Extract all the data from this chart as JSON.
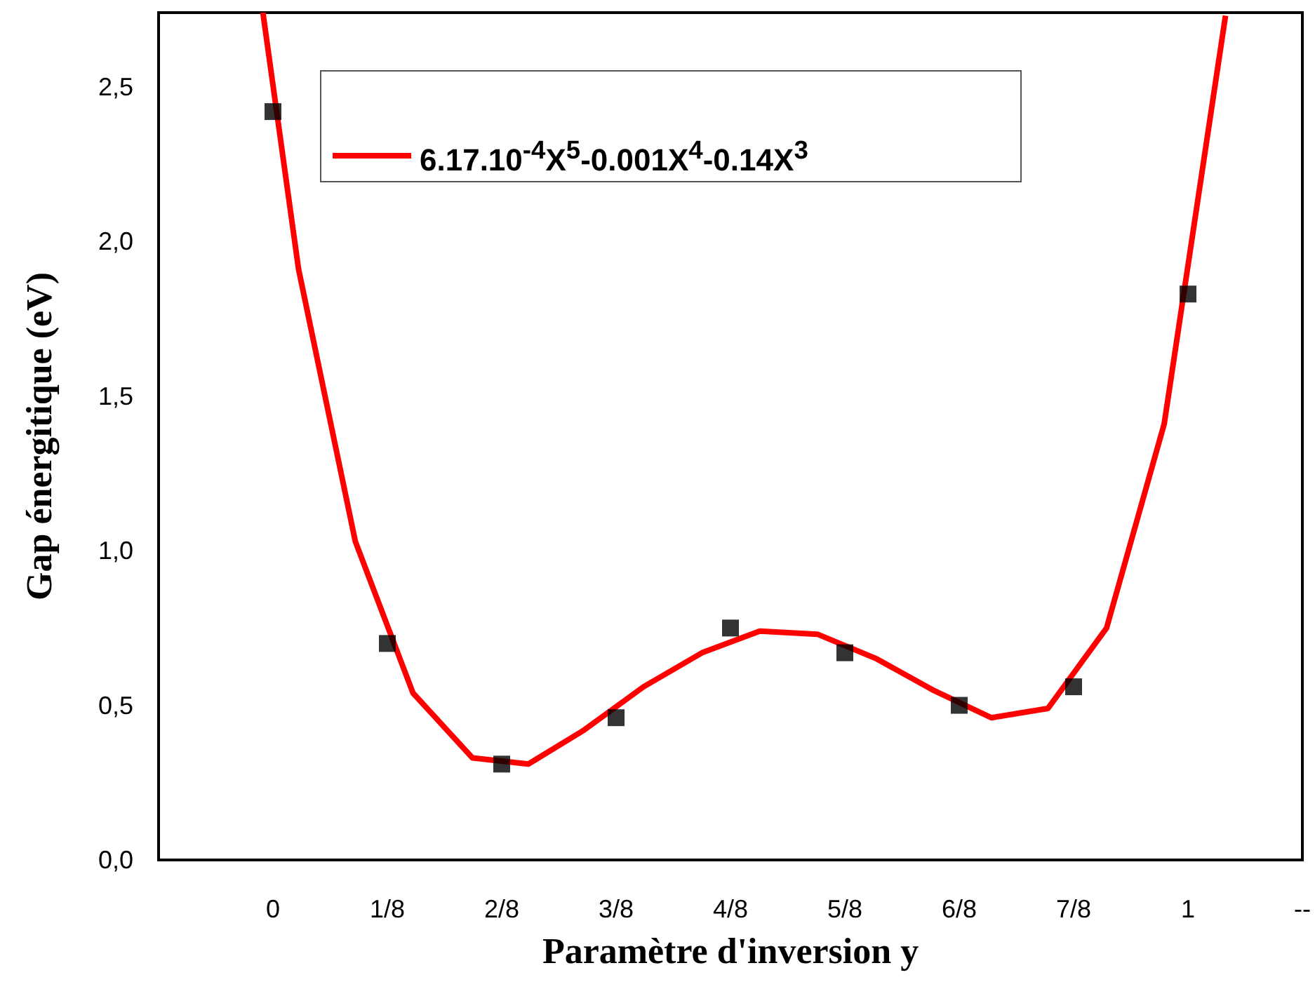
{
  "chart_data": {
    "type": "scatter",
    "xlabel": "Paramètre d'inversion y",
    "ylabel": "Gap énergitique (eV)",
    "xlim": [
      -0.125,
      1.125
    ],
    "xticks": [
      0,
      {
        "value": 0.125,
        "label": "1/8"
      },
      {
        "value": 0.25,
        "label": "2/8"
      },
      {
        "value": 0.375,
        "label": "3/8"
      },
      {
        "value": 0.5,
        "label": "4/8"
      },
      {
        "value": 0.625,
        "label": "5/8"
      },
      {
        "value": 0.75,
        "label": "6/8"
      },
      {
        "value": 0.875,
        "label": "7/8"
      },
      1,
      {
        "value": 1.125,
        "label": "--"
      }
    ],
    "ylim": [
      0,
      2.74
    ],
    "yticks": [
      {
        "value": 0,
        "label": "0,0"
      },
      {
        "value": 0.5,
        "label": "0,5"
      },
      {
        "value": 1,
        "label": "1,0"
      },
      {
        "value": 1.5,
        "label": "1,5"
      },
      {
        "value": 2,
        "label": "2,0"
      },
      {
        "value": 2.5,
        "label": "2,5"
      }
    ],
    "grid": false,
    "legend": "top",
    "series": [
      {
        "marker": "square",
        "color": "#000000",
        "x": [
          0,
          0.125,
          0.25,
          0.375,
          0.5,
          0.625,
          0.75,
          0.875,
          1
        ],
        "values": [
          2.42,
          0.7,
          0.31,
          0.46,
          0.75,
          0.67,
          0.5,
          0.56,
          1.83
        ]
      },
      {
        "type": "line",
        "marker": "none",
        "name": "6.17.10$^{-4}$X$^{5}$-0.001X$^{4}$-0.14X$^{3}$",
        "color": "#ff0000",
        "x": [
          -0.011,
          0.028,
          0.09,
          0.153,
          0.218,
          0.279,
          0.34,
          0.405,
          0.469,
          0.532,
          0.595,
          0.66,
          0.721,
          0.785,
          0.847,
          0.911,
          0.974,
          1.041
        ],
        "values": [
          2.74,
          1.91,
          1.03,
          0.54,
          0.33,
          0.31,
          0.42,
          0.56,
          0.67,
          0.74,
          0.73,
          0.65,
          0.55,
          0.46,
          0.49,
          0.75,
          1.41,
          2.73
        ]
      }
    ]
  }
}
